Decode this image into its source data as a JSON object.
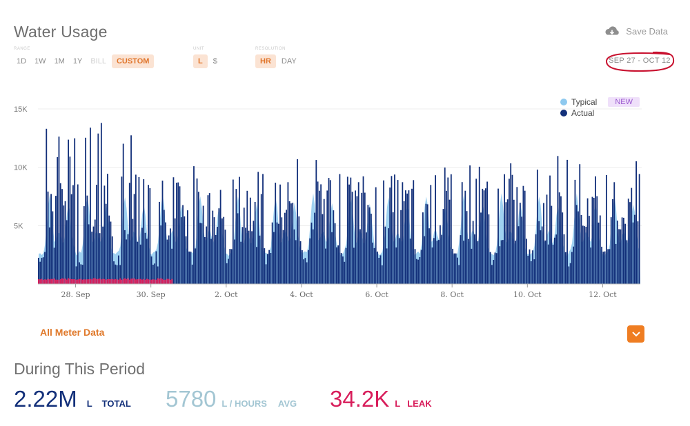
{
  "header": {
    "title": "Water Usage",
    "save_label": "Save Data",
    "date_range": "SEP 27 - OCT 12"
  },
  "controls": {
    "range": {
      "caption": "RANGE",
      "options": [
        "1D",
        "1W",
        "1M",
        "1Y",
        "BILL",
        "CUSTOM"
      ],
      "selected": "CUSTOM",
      "disabled": [
        "BILL"
      ]
    },
    "unit": {
      "caption": "UNIT",
      "options": [
        "L",
        "$"
      ],
      "selected": "L"
    },
    "resolution": {
      "caption": "RESOLUTION",
      "options": [
        "HR",
        "DAY"
      ],
      "selected": "HR"
    }
  },
  "legend": {
    "typical": "Typical",
    "actual": "Actual",
    "badge": "NEW"
  },
  "chart_data": {
    "type": "bar",
    "y_ticks": [
      "15K",
      "10K",
      "5K"
    ],
    "ylim": [
      0,
      15000
    ],
    "x_ticks": [
      "28. Sep",
      "30. Sep",
      "2. Oct",
      "4. Oct",
      "6. Oct",
      "8. Oct",
      "10. Oct",
      "12. Oct"
    ],
    "x_start": "2023-09-27T00:00",
    "x_end": "2023-10-12T23:00",
    "resolution": "hourly",
    "series": [
      {
        "name": "Typical",
        "kind": "area",
        "color": "#8ec9ef",
        "daily_pattern_peaks": [
          8200,
          8700
        ]
      },
      {
        "name": "Actual",
        "kind": "bars",
        "color": "#13307a",
        "peak_max": 13800
      },
      {
        "name": "Leak",
        "kind": "bars",
        "color": "#d81e5b",
        "approx_value": 450,
        "range": [
          "27. Sep",
          "30. Sep"
        ]
      }
    ]
  },
  "links": {
    "all_meter": "All Meter Data"
  },
  "summary": {
    "heading": "During This Period",
    "total": {
      "value": "2.22M",
      "unit": "L",
      "label": "TOTAL",
      "color": "#13307a"
    },
    "avg": {
      "value": "5780",
      "unit": "L / HOURS",
      "label": "AVG",
      "color": "#9fc1cf"
    },
    "leak": {
      "value": "34.2K",
      "unit": "L",
      "label": "LEAK",
      "color": "#d81e5b"
    }
  },
  "colors": {
    "accent": "#e07a2c",
    "actual": "#13307a",
    "typical": "#8ec9ef",
    "leak": "#d81e5b",
    "annotation": "#c8102e"
  }
}
